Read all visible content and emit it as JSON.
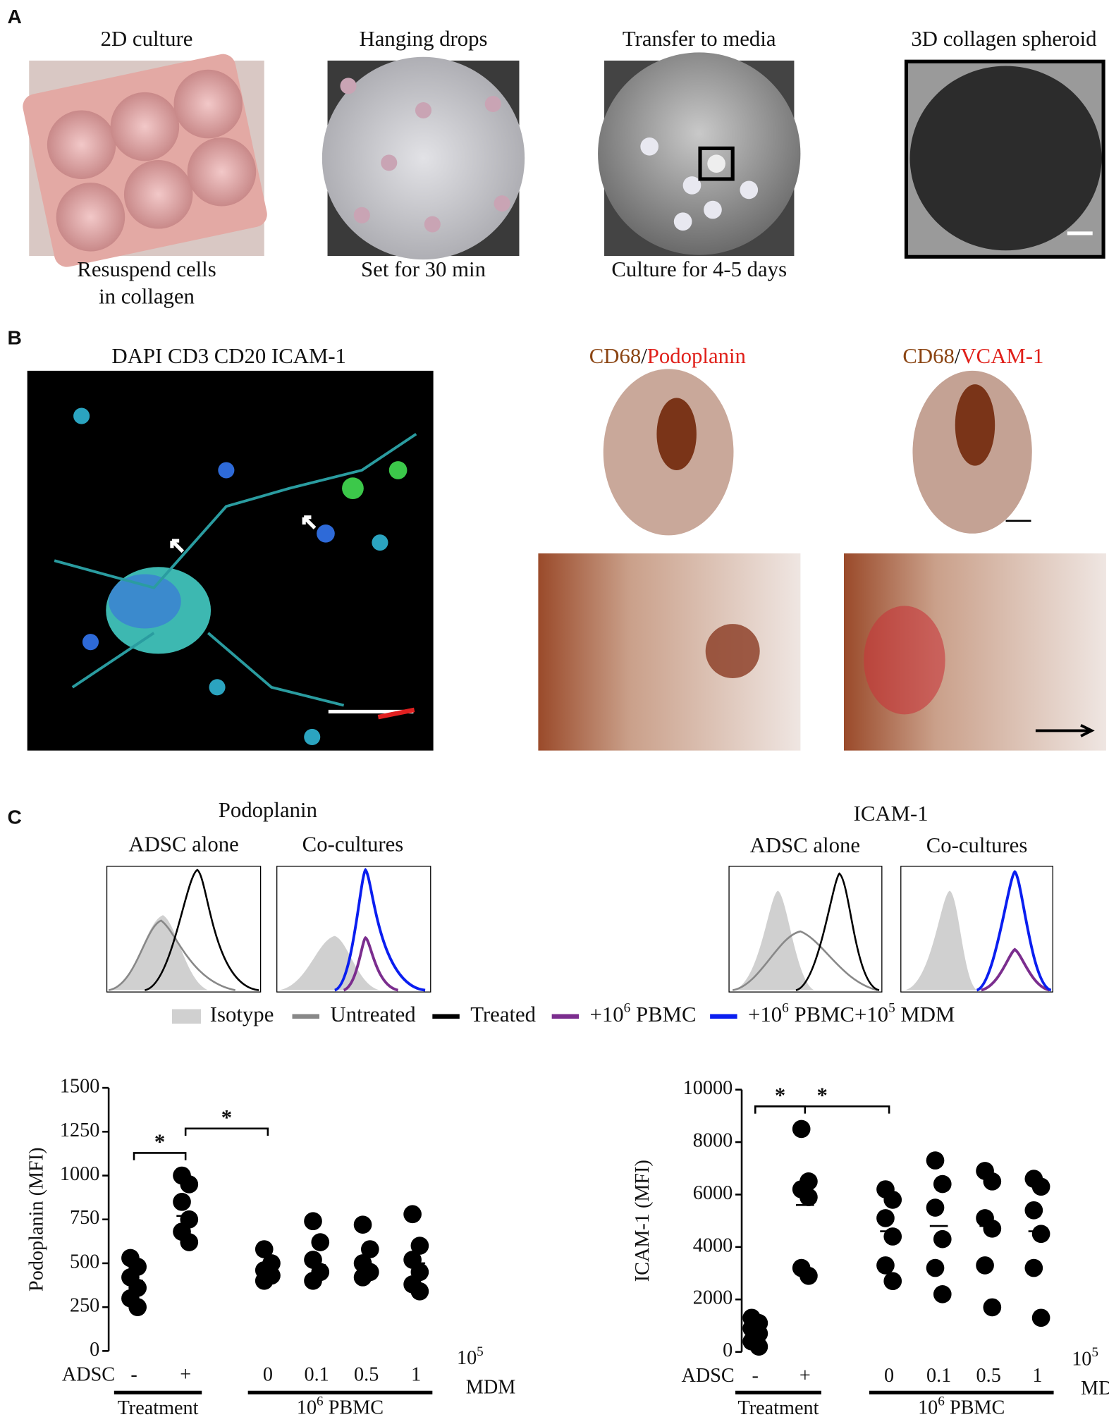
{
  "panel_labels": [
    "A",
    "B",
    "C"
  ],
  "panel_a": {
    "steps": [
      {
        "title": "2D culture",
        "caption": [
          "Resuspend cells",
          "in collagen"
        ]
      },
      {
        "title": "Hanging drops",
        "caption": [
          "Set for 30 min"
        ]
      },
      {
        "title": "Transfer to media",
        "caption": [
          "Culture for 4-5 days"
        ]
      },
      {
        "title": "3D collagen spheroid",
        "caption": []
      }
    ]
  },
  "panel_b": {
    "fluorescence_title": "DAPI CD3 CD20 ICAM-1",
    "stain_titles": [
      {
        "first": "CD68",
        "sep": "/",
        "second": "Podoplanin"
      },
      {
        "first": "CD68",
        "sep": "/",
        "second": "VCAM-1"
      }
    ]
  },
  "panel_c": {
    "histograms": [
      {
        "title": "Podoplanin",
        "subtitles": [
          "ADSC alone",
          "Co-cultures"
        ]
      },
      {
        "title": "ICAM-1",
        "subtitles": [
          "ADSC alone",
          "Co-cultures"
        ]
      }
    ],
    "legend": [
      {
        "label": "Isotype",
        "color": "#d0d0d0"
      },
      {
        "label": "Untreated",
        "color": "#888888"
      },
      {
        "label": "Treated",
        "color": "#000000"
      },
      {
        "label": {
          "base": "+10",
          "sup": "6",
          "rest": " PBMC"
        },
        "color": "#7b2d8e"
      },
      {
        "label": {
          "base": "+10",
          "sup": "6",
          "rest": " PBMC+10",
          "sup2": "5",
          "rest2": " MDM"
        },
        "color": "#0a1ef0"
      }
    ]
  },
  "chart_data": [
    {
      "type": "scatter",
      "y_label": "Podoplanin (MFI)",
      "ylim": [
        0,
        1500
      ],
      "yticks": [
        0,
        250,
        500,
        750,
        1000,
        1250,
        1500
      ],
      "row_label": "ADSC",
      "categories": [
        "-",
        "+",
        "0",
        "0.1",
        "0.5",
        "1"
      ],
      "values": [
        [
          530,
          480,
          420,
          360,
          300,
          250
        ],
        [
          1000,
          950,
          850,
          750,
          680,
          620
        ],
        [
          580,
          500,
          460,
          430,
          400
        ],
        [
          740,
          620,
          520,
          450,
          400
        ],
        [
          720,
          580,
          500,
          450,
          420
        ],
        [
          780,
          600,
          520,
          450,
          380,
          340
        ]
      ],
      "means": [
        400,
        770,
        470,
        490,
        480,
        500
      ],
      "color": "#000000",
      "mdm_label": {
        "base": "10",
        "sup": "5",
        "name": "MDM"
      },
      "groups": [
        {
          "label": "Treatment",
          "from": 0,
          "to": 1
        },
        {
          "label": {
            "base": "10",
            "sup": "6",
            "rest": " PBMC"
          },
          "from": 2,
          "to": 5
        }
      ],
      "significance": [
        {
          "from": 0,
          "to": 1,
          "label": "*"
        },
        {
          "from": 1,
          "to": 2,
          "label": "*"
        }
      ]
    },
    {
      "type": "scatter",
      "y_label": "ICAM-1 (MFI)",
      "ylim": [
        0,
        10000
      ],
      "yticks": [
        0,
        2000,
        4000,
        6000,
        8000,
        10000
      ],
      "row_label": "ADSC",
      "categories": [
        "-",
        "+",
        "0",
        "0.1",
        "0.5",
        "1"
      ],
      "values": [
        [
          1300,
          1100,
          900,
          700,
          400,
          200
        ],
        [
          8500,
          6500,
          6200,
          5900,
          3200,
          2900
        ],
        [
          6200,
          5800,
          5100,
          4400,
          3300,
          2700
        ],
        [
          7300,
          6400,
          5500,
          4300,
          3200,
          2200
        ],
        [
          6900,
          6500,
          5100,
          4700,
          3300,
          1700
        ],
        [
          6600,
          6300,
          5400,
          4500,
          3200,
          1300
        ]
      ],
      "means": [
        800,
        5600,
        4600,
        4800,
        4800,
        4600
      ],
      "color": "#000000",
      "mdm_label": {
        "base": "10",
        "sup": "5",
        "name": "MDM"
      },
      "groups": [
        {
          "label": "Treatment",
          "from": 0,
          "to": 1
        },
        {
          "label": {
            "base": "10",
            "sup": "6",
            "rest": " PBMC"
          },
          "from": 2,
          "to": 5
        }
      ],
      "significance": [
        {
          "from": 0,
          "to": 1,
          "label": "*"
        },
        {
          "from": 0,
          "to": 2,
          "label": "*"
        }
      ]
    }
  ]
}
